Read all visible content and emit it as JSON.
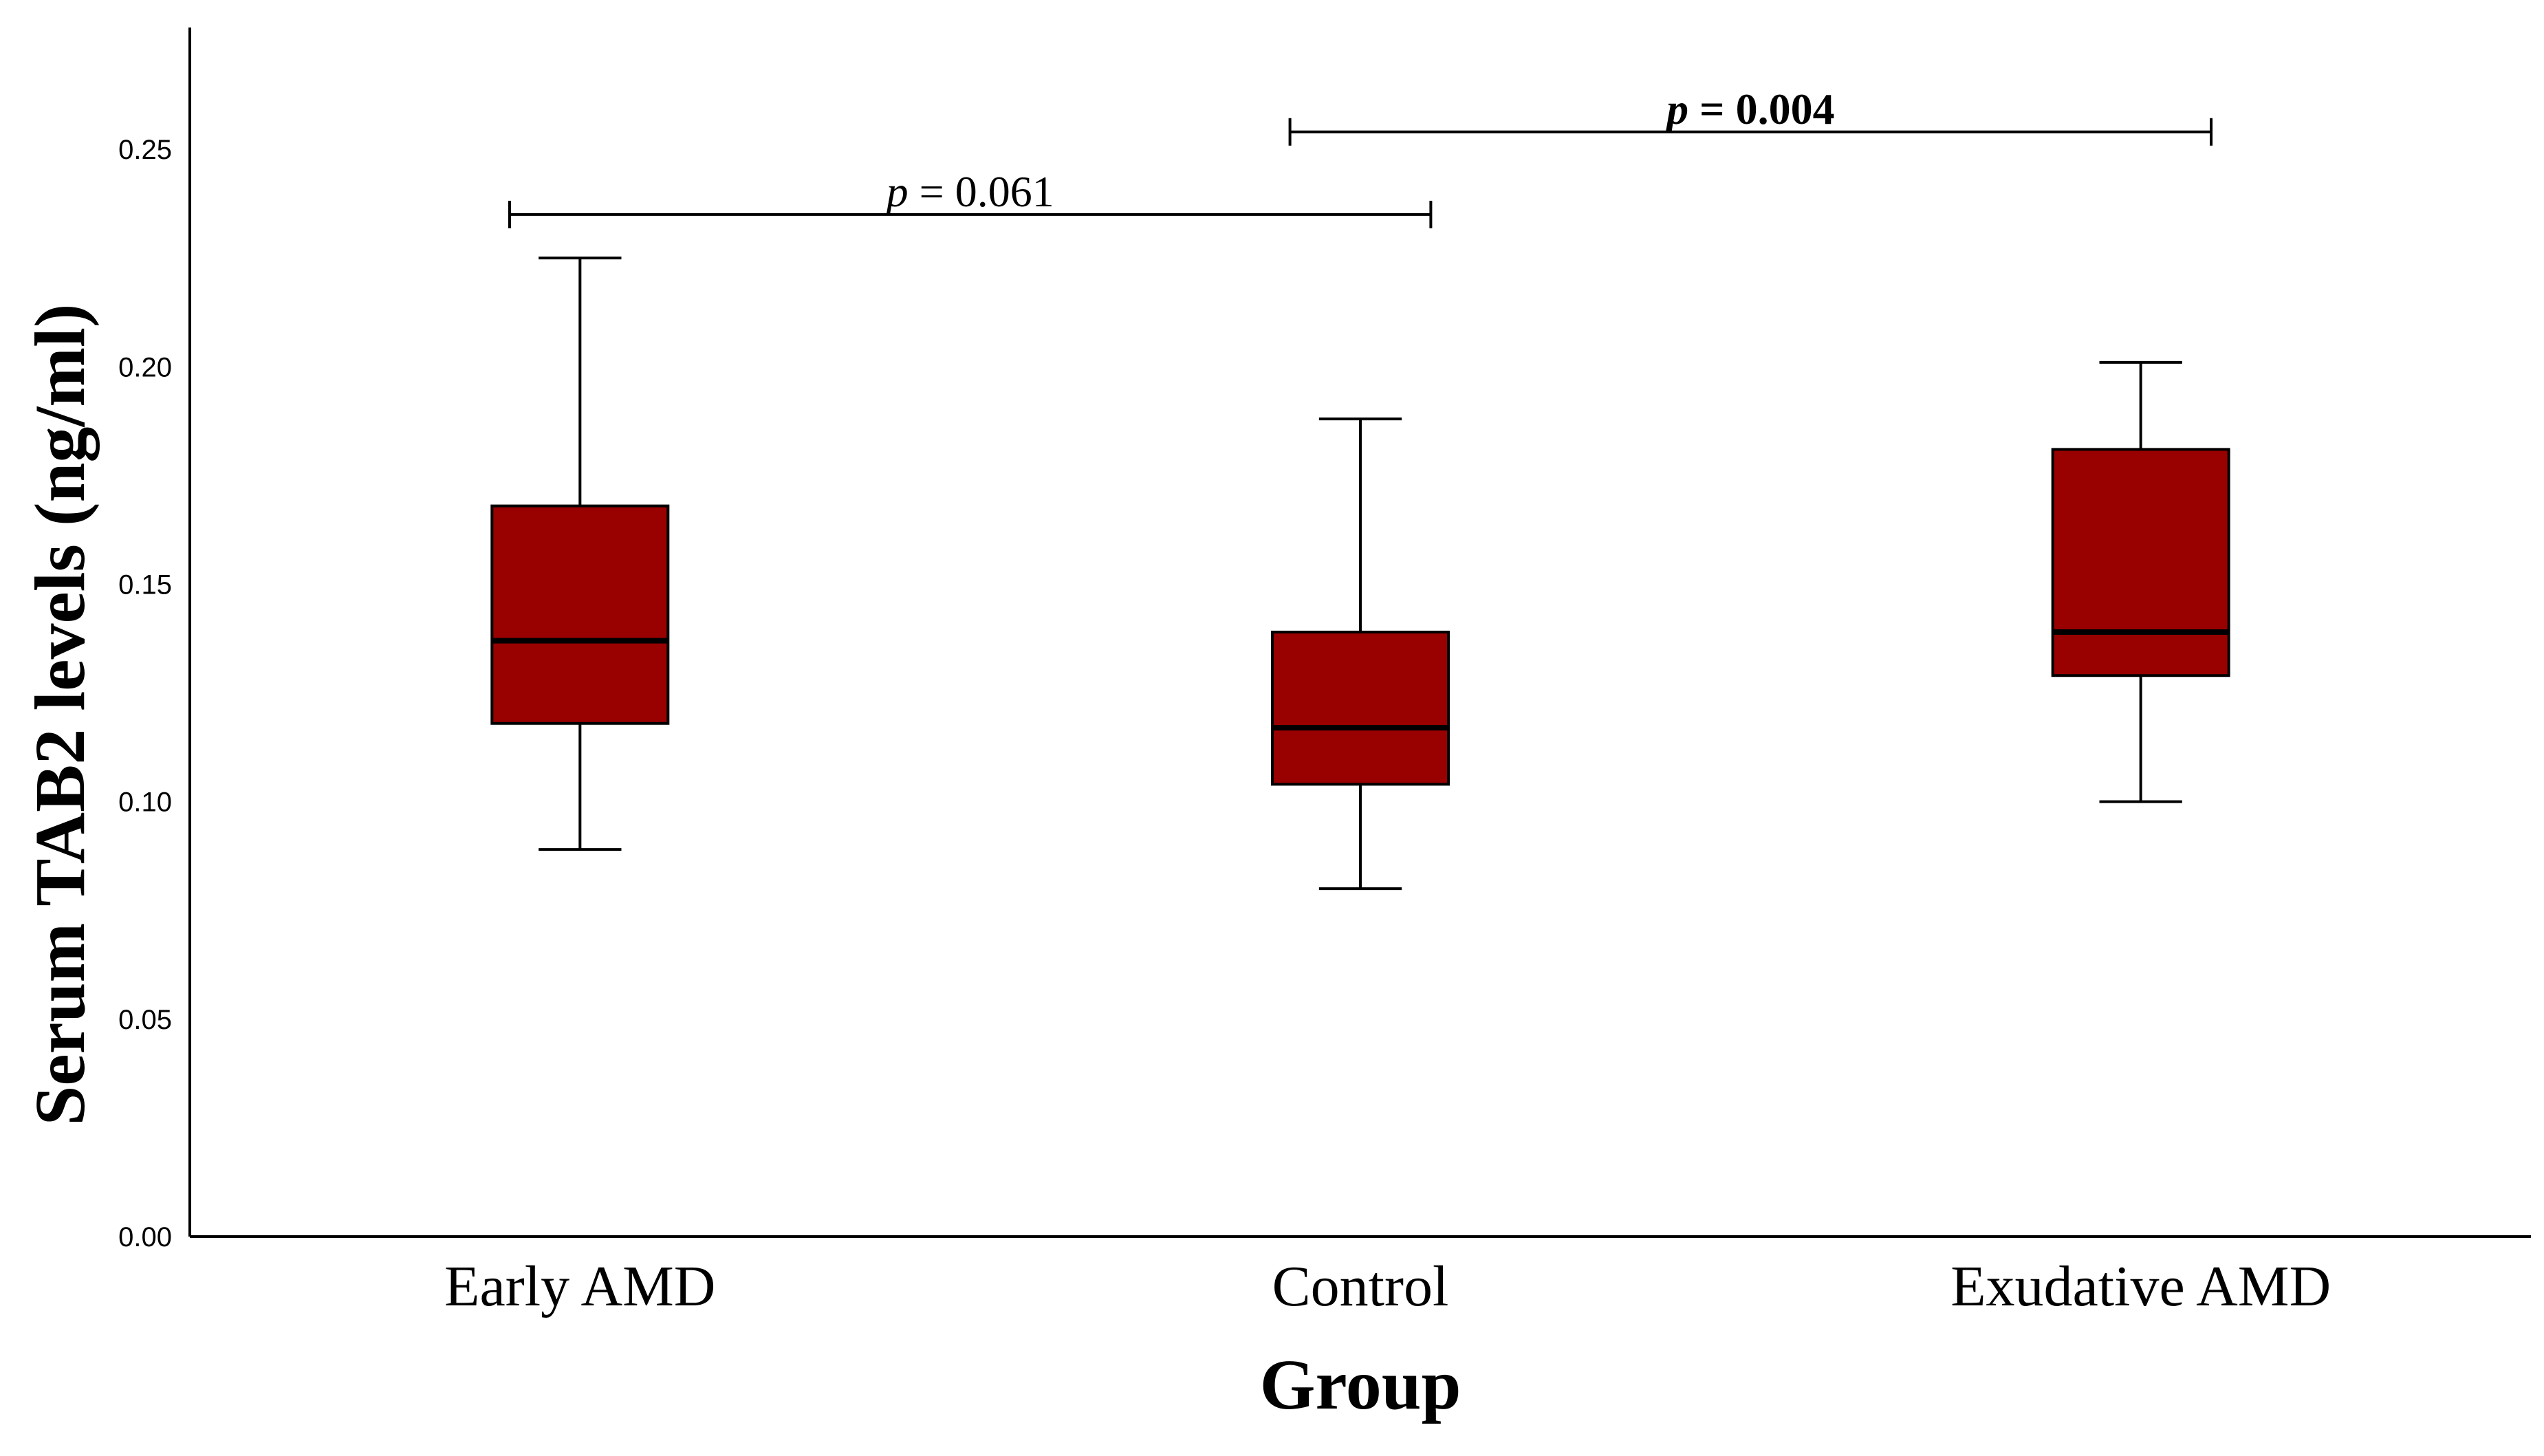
{
  "chart_data": {
    "type": "boxplot",
    "title": "",
    "xlabel": "Group",
    "ylabel": "Serum TAB2 levels (ng/ml)",
    "ylim": [
      0,
      0.278
    ],
    "yticks": [
      0.0,
      0.05,
      0.1,
      0.15,
      0.2,
      0.25
    ],
    "ytick_labels": [
      "0.00",
      "0.05",
      "0.10",
      "0.15",
      "0.20",
      "0.25"
    ],
    "categories": [
      "Early AMD",
      "Control",
      "Exudative AMD"
    ],
    "box_color": "#990000",
    "series": [
      {
        "name": "Early AMD",
        "min": 0.089,
        "q1": 0.118,
        "median": 0.137,
        "q3": 0.168,
        "max": 0.225
      },
      {
        "name": "Control",
        "min": 0.08,
        "q1": 0.104,
        "median": 0.117,
        "q3": 0.139,
        "max": 0.188
      },
      {
        "name": "Exudative AMD",
        "min": 0.1,
        "q1": 0.129,
        "median": 0.139,
        "q3": 0.181,
        "max": 0.201
      }
    ],
    "annotations": [
      {
        "from": "Early AMD",
        "to": "Control",
        "y": 0.235,
        "p_symbol": "p",
        "label": " = 0.061",
        "bold": false
      },
      {
        "from": "Control",
        "to": "Exudative AMD",
        "y": 0.254,
        "p_symbol": "p",
        "label": " = 0.004",
        "bold": true
      }
    ]
  }
}
